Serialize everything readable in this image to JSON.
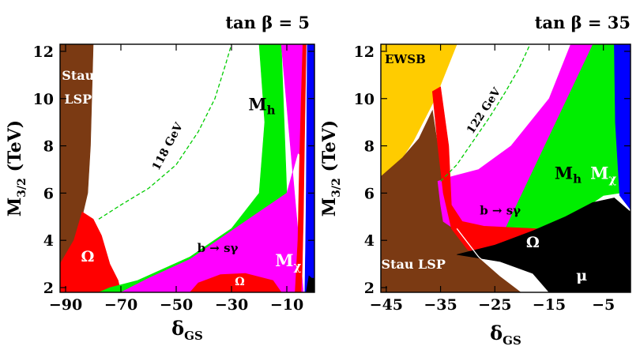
{
  "chart_data": [
    {
      "type": "region-plot",
      "title": "tan β = 5",
      "xlabel": "δ",
      "xlabel_sub": "GS",
      "ylabel": "M",
      "ylabel_sub": "3/2",
      "ylabel_unit": "(TeV)",
      "xlim": [
        -92,
        0
      ],
      "ylim": [
        1.8,
        12.3
      ],
      "xticks": [
        -90,
        -70,
        -50,
        -30,
        -10
      ],
      "xtick_labels": [
        "−90",
        "−70",
        "−50",
        "−30",
        "−10"
      ],
      "yticks": [
        2,
        4,
        6,
        8,
        10,
        12
      ],
      "ytick_labels": [
        "2",
        "4",
        "6",
        "8",
        "10",
        "12"
      ],
      "regions": [
        {
          "name": "Stau LSP",
          "color": "#7B3A13",
          "points": [
            [
              -92,
              12.3
            ],
            [
              -80,
              12.3
            ],
            [
              -81,
              8
            ],
            [
              -82,
              6
            ],
            [
              -84,
              5
            ],
            [
              -87,
              4
            ],
            [
              -92,
              3
            ]
          ]
        },
        {
          "name": "Omega relic density",
          "color": "#FF0000",
          "points": [
            [
              -84,
              5.2
            ],
            [
              -80,
              4.9
            ],
            [
              -77,
              4.2
            ],
            [
              -74,
              3
            ],
            [
              -71,
              2.3
            ],
            [
              -70,
              1.8
            ],
            [
              -92,
              1.8
            ],
            [
              -92,
              3
            ],
            [
              -87,
              4
            ]
          ]
        },
        {
          "name": "green band",
          "color": "#00EE00",
          "points": [
            [
              -20,
              12.3
            ],
            [
              -12,
              12.3
            ],
            [
              -10,
              6
            ],
            [
              -20,
              5.2
            ],
            [
              -45,
              3.2
            ],
            [
              -60,
              2.4
            ],
            [
              -70,
              1.8
            ],
            [
              -78,
              1.8
            ],
            [
              -74,
              2
            ],
            [
              -64,
              2.3
            ],
            [
              -45,
              3.3
            ],
            [
              -30,
              4.5
            ],
            [
              -20,
              6
            ],
            [
              -18,
              9
            ]
          ]
        },
        {
          "name": "b to s gamma",
          "color": "#FF00FF",
          "points": [
            [
              -12,
              12.3
            ],
            [
              -4,
              12.3
            ],
            [
              -4,
              7.5
            ],
            [
              -6,
              7.7
            ],
            [
              -10,
              6
            ],
            [
              -20,
              5.2
            ],
            [
              -45,
              3.2
            ],
            [
              -60,
              2.4
            ],
            [
              -70,
              1.8
            ],
            [
              -4,
              1.8
            ]
          ]
        },
        {
          "name": "Omega lower",
          "color": "#FF0000",
          "points": [
            [
              -45,
              1.8
            ],
            [
              -42,
              2.2
            ],
            [
              -34,
              2.55
            ],
            [
              -25,
              2.6
            ],
            [
              -15,
              2.3
            ],
            [
              -12,
              1.8
            ]
          ]
        },
        {
          "name": "red strip",
          "color": "#FF0000",
          "points": [
            [
              -7,
              1.8
            ],
            [
              -6,
              4
            ],
            [
              -5.5,
              7
            ],
            [
              -4.8,
              10
            ],
            [
              -4.2,
              12.3
            ],
            [
              -3,
              12.3
            ],
            [
              -3.5,
              9
            ],
            [
              -4,
              5
            ],
            [
              -4.5,
              2.6
            ],
            [
              -4.8,
              1.8
            ]
          ]
        },
        {
          "name": "M chi",
          "color": "#0000FF",
          "points": [
            [
              -4.2,
              12.3
            ],
            [
              -2.6,
              12.3
            ],
            [
              -2.8,
              9
            ],
            [
              -3,
              6
            ],
            [
              -3.2,
              4
            ],
            [
              -3.5,
              1.8
            ],
            [
              0,
              1.8
            ],
            [
              0,
              12.3
            ]
          ]
        },
        {
          "name": "chargino",
          "color": "#000000",
          "points": [
            [
              -3,
              1.8
            ],
            [
              -2,
              2.5
            ],
            [
              -1,
              2.4
            ],
            [
              0,
              2.4
            ],
            [
              0,
              1.8
            ]
          ]
        }
      ],
      "curves": [
        {
          "name": "118 GeV",
          "color": "#00CC00",
          "dashed": true,
          "points": [
            [
              -78,
              4.9
            ],
            [
              -70,
              5.5
            ],
            [
              -60,
              6.2
            ],
            [
              -50,
              7.2
            ],
            [
              -42,
              8.6
            ],
            [
              -36,
              10
            ],
            [
              -32,
              11.5
            ],
            [
              -30,
              12.3
            ]
          ]
        }
      ],
      "labels": [
        {
          "text": "Stau",
          "x": -85.5,
          "y": 10.8,
          "color": "#FFFFFF",
          "size": 16,
          "rotate": 0
        },
        {
          "text": "LSP",
          "x": -85.5,
          "y": 9.8,
          "color": "#FFFFFF",
          "size": 16,
          "rotate": 0
        },
        {
          "text": "Ω",
          "x": -82,
          "y": 3.1,
          "color": "#FFFFFF",
          "size": 19,
          "rotate": 0
        },
        {
          "text": "118 GeV",
          "x": -52,
          "y": 7.9,
          "color": "#000000",
          "size": 14,
          "rotate": -62
        },
        {
          "text": "M",
          "x": -19,
          "y": 9.5,
          "color": "#000000",
          "size": 21,
          "rotate": 0,
          "sub": "h"
        },
        {
          "text": "b → sγ",
          "x": -35,
          "y": 3.5,
          "color": "#000000",
          "size": 15,
          "rotate": 0
        },
        {
          "text": "Ω",
          "x": -27,
          "y": 2.1,
          "color": "#FFFFFF",
          "size": 14,
          "rotate": 0
        },
        {
          "text": "M",
          "x": -9.5,
          "y": 2.9,
          "color": "#FFFFFF",
          "size": 21,
          "rotate": 0,
          "sub": "χ"
        }
      ]
    },
    {
      "type": "region-plot",
      "title": "tan β = 35",
      "xlabel": "δ",
      "xlabel_sub": "GS",
      "ylabel": "M",
      "ylabel_sub": "3/2",
      "ylabel_unit": "(TeV)",
      "xlim": [
        -46,
        0
      ],
      "ylim": [
        1.8,
        12.3
      ],
      "xticks": [
        -45,
        -35,
        -25,
        -15,
        -5
      ],
      "xtick_labels": [
        "−45",
        "−35",
        "−25",
        "−15",
        "−5"
      ],
      "yticks": [
        2,
        4,
        6,
        8,
        10,
        12
      ],
      "ytick_labels": [
        "2",
        "4",
        "6",
        "8",
        "10",
        "12"
      ],
      "regions": [
        {
          "name": "EWSB",
          "color": "#FFCC00",
          "points": [
            [
              -46,
              12.3
            ],
            [
              -32,
              12.3
            ],
            [
              -36,
              10
            ],
            [
              -40,
              8.2
            ],
            [
              -42,
              7.5
            ],
            [
              -46,
              6.7
            ]
          ]
        },
        {
          "name": "Stau LSP",
          "color": "#7B3A13",
          "points": [
            [
              -46,
              6.7
            ],
            [
              -42,
              7.5
            ],
            [
              -39,
              8.3
            ],
            [
              -36.5,
              9.5
            ],
            [
              -35.5,
              8
            ],
            [
              -34.5,
              6.5
            ],
            [
              -32,
              4.5
            ],
            [
              -28,
              3.3
            ],
            [
              -24,
              2.5
            ],
            [
              -20,
              1.8
            ],
            [
              -46,
              1.8
            ]
          ]
        },
        {
          "name": "green band",
          "color": "#00EE00",
          "points": [
            [
              -7,
              12.3
            ],
            [
              -3,
              12.3
            ],
            [
              -2,
              6
            ],
            [
              -5,
              5.9
            ],
            [
              -10,
              5.1
            ],
            [
              -18,
              4.2
            ],
            [
              -25,
              3.6
            ]
          ]
        },
        {
          "name": "b to s gamma",
          "color": "#FF00FF",
          "points": [
            [
              -7,
              12.3
            ],
            [
              -25,
              3.6
            ],
            [
              -30,
              4.1
            ],
            [
              -34.5,
              4.8
            ],
            [
              -35,
              5.5
            ],
            [
              -35.5,
              6.5
            ],
            [
              -33,
              6.7
            ],
            [
              -28,
              7
            ],
            [
              -22,
              8
            ],
            [
              -15,
              10
            ],
            [
              -11,
              12.3
            ]
          ]
        },
        {
          "name": "Omega band",
          "color": "#FF0000",
          "points": [
            [
              -36.5,
              10.3
            ],
            [
              -35.5,
              8
            ],
            [
              -34.5,
              6
            ],
            [
              -33,
              4.5
            ],
            [
              -30,
              3.6
            ],
            [
              -25,
              3.3
            ],
            [
              -18,
              3
            ],
            [
              -10,
              2.8
            ],
            [
              -6,
              3
            ],
            [
              -5,
              2.3
            ],
            [
              -3,
              2.3
            ],
            [
              -3.5,
              3.1
            ],
            [
              -2,
              3.2
            ],
            [
              -1.5,
              4
            ],
            [
              -3.5,
              4.2
            ],
            [
              -5,
              4.4
            ],
            [
              -10,
              4.4
            ],
            [
              -18,
              4.5
            ],
            [
              -27,
              4.6
            ],
            [
              -31,
              4.8
            ],
            [
              -33,
              5.5
            ],
            [
              -33.5,
              8
            ],
            [
              -35,
              10.5
            ]
          ]
        },
        {
          "name": "mu region",
          "color": "#000000",
          "points": [
            [
              -32,
              3.4
            ],
            [
              -24,
              3.1
            ],
            [
              -18,
              2.6
            ],
            [
              -15,
              1.8
            ],
            [
              0,
              1.8
            ],
            [
              0,
              5.2
            ],
            [
              -3,
              5.8
            ],
            [
              -7,
              5.6
            ],
            [
              -12,
              5
            ],
            [
              -18,
              4.4
            ],
            [
              -25,
              3.8
            ]
          ]
        },
        {
          "name": "M chi",
          "color": "#0000FF",
          "points": [
            [
              -3,
              12.3
            ],
            [
              -1,
              12.3
            ],
            [
              0,
              12.3
            ],
            [
              0,
              5.3
            ],
            [
              -2,
              5.9
            ],
            [
              -2.8,
              9
            ]
          ]
        }
      ],
      "curves": [
        {
          "name": "122 GeV",
          "color": "#00CC00",
          "dashed": true,
          "points": [
            [
              -35,
              6.5
            ],
            [
              -32,
              7.2
            ],
            [
              -29,
              8.2
            ],
            [
              -26,
              9.2
            ],
            [
              -23,
              10.3
            ],
            [
              -20.5,
              11.3
            ],
            [
              -18.5,
              12.3
            ]
          ]
        },
        {
          "name": "white boundary",
          "color": "#FFFFFF",
          "dashed": false,
          "points": [
            [
              -32,
              4.5
            ],
            [
              -28,
              3.3
            ],
            [
              -24,
              2.5
            ],
            [
              -20,
              1.8
            ]
          ]
        }
      ],
      "labels": [
        {
          "text": "EWSB",
          "x": -41.5,
          "y": 11.5,
          "color": "#000000",
          "size": 15,
          "rotate": 0
        },
        {
          "text": "122 GeV",
          "x": -26.5,
          "y": 9.4,
          "color": "#000000",
          "size": 14,
          "rotate": -57
        },
        {
          "text": "M",
          "x": -11.5,
          "y": 6.6,
          "color": "#000000",
          "size": 21,
          "rotate": 0,
          "sub": "h"
        },
        {
          "text": "M",
          "x": -5,
          "y": 6.6,
          "color": "#FFFFFF",
          "size": 21,
          "rotate": 0,
          "sub": "χ"
        },
        {
          "text": "b → sγ",
          "x": -24,
          "y": 5.1,
          "color": "#000000",
          "size": 15,
          "rotate": 0
        },
        {
          "text": "Ω",
          "x": -18,
          "y": 3.7,
          "color": "#FFFFFF",
          "size": 19,
          "rotate": 0
        },
        {
          "text": "Stau LSP",
          "x": -40,
          "y": 2.8,
          "color": "#FFFFFF",
          "size": 16,
          "rotate": 0
        },
        {
          "text": "μ",
          "x": -9,
          "y": 2.3,
          "color": "#FFFFFF",
          "size": 19,
          "rotate": 0
        }
      ]
    }
  ]
}
